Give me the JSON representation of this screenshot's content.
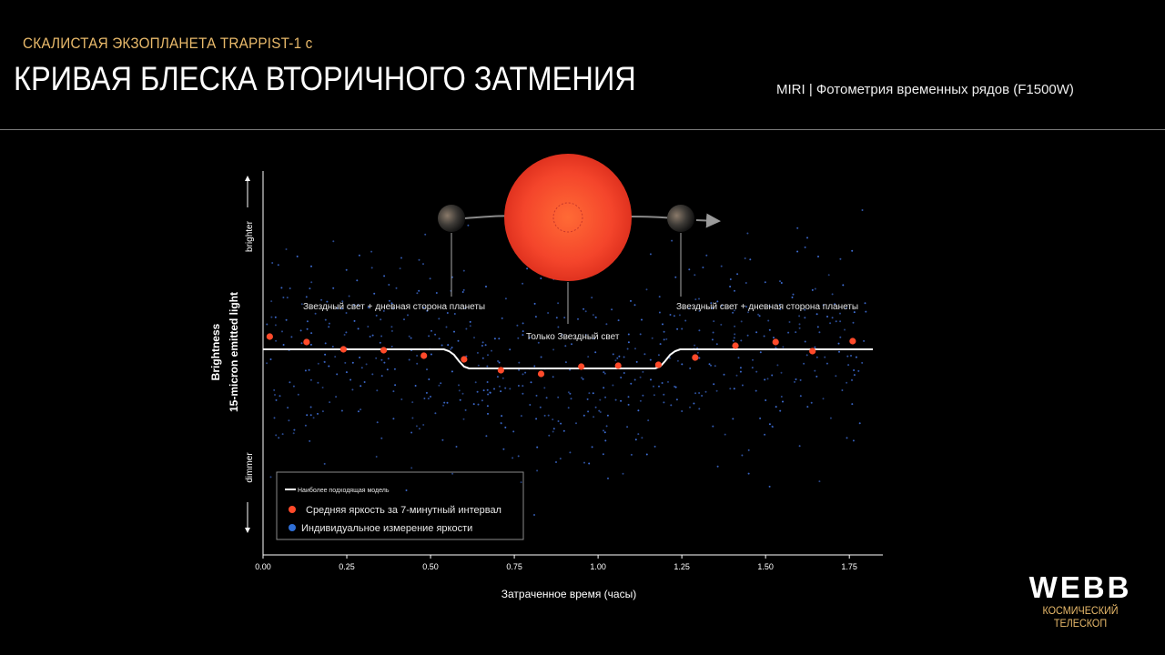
{
  "header": {
    "supertitle": "СКАЛИСТАЯ ЭКЗОПЛАНЕТА TRAPPIST-1 c",
    "title": "КРИВАЯ БЛЕСКА ВТОРИЧНОГО ЗАТМЕНИЯ",
    "instrument": "MIRI | Фотометрия временных рядов (F1500W)"
  },
  "colors": {
    "accent_gold": "#e8b96a",
    "binned_points": "#ff4a2a",
    "individual_points": "#3f6fd8",
    "model_line": "#ffffff",
    "star": "#f4402a"
  },
  "annotations": {
    "left": "Звездный свет + дневная сторона планеты",
    "center": "Только Звездный свет",
    "right": "Звездный свет + дневная сторона планеты"
  },
  "legend": {
    "model": "Наиболее подходящая модель",
    "binned": "Средняя яркость за 7-минутный интервал",
    "individual": "Индивидуальное измерение яркости"
  },
  "logo": {
    "word": "WEBB",
    "subtitle": "КОСМИЧЕСКИЙ ТЕЛЕСКОП"
  },
  "chart_data": {
    "type": "scatter",
    "xlabel": "Затраченное время (часы)",
    "ylabel": "Brightness",
    "ylabel2": "15-micron emitted light",
    "y_high_label": "brighter",
    "y_low_label": "dimmer",
    "xlim": [
      0,
      1.85
    ],
    "ylim": [
      -1,
      1
    ],
    "x_ticks": [
      0,
      0.25,
      0.5,
      0.75,
      1.0,
      1.25,
      1.5,
      1.75
    ],
    "x_tick_labels": [
      "0.00",
      "0.25",
      "0.50",
      "0.75",
      "1.00",
      "1.25",
      "1.50",
      "1.75"
    ],
    "series": [
      {
        "name": "Наиболее подходящая модель",
        "kind": "line",
        "x": [
          0.0,
          0.54,
          0.555,
          0.57,
          0.585,
          0.6,
          0.615,
          1.17,
          1.185,
          1.2,
          1.215,
          1.23,
          1.245,
          1.82
        ],
        "y": [
          0.0,
          0.0,
          -0.02,
          -0.06,
          -0.13,
          -0.19,
          -0.21,
          -0.21,
          -0.19,
          -0.13,
          -0.06,
          -0.02,
          0.0,
          0.0
        ]
      },
      {
        "name": "Средняя яркость за 7-минутный интервал",
        "kind": "points",
        "x": [
          0.02,
          0.13,
          0.24,
          0.36,
          0.48,
          0.6,
          0.71,
          0.83,
          0.95,
          1.06,
          1.18,
          1.29,
          1.41,
          1.53,
          1.64,
          1.76
        ],
        "y": [
          0.14,
          0.08,
          0.0,
          -0.01,
          -0.07,
          -0.11,
          -0.23,
          -0.27,
          -0.19,
          -0.18,
          -0.17,
          -0.09,
          0.04,
          0.08,
          -0.02,
          0.09
        ]
      }
    ]
  }
}
